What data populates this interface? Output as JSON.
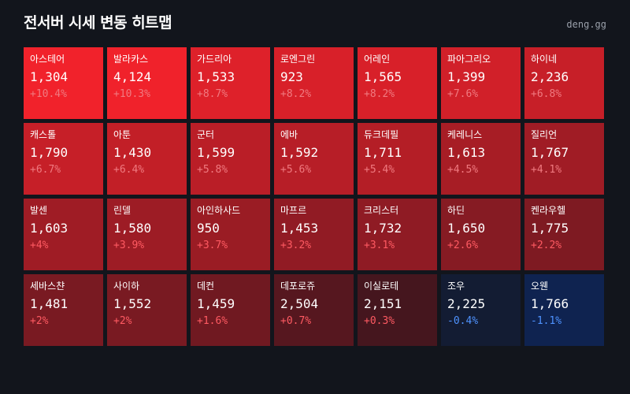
{
  "header": {
    "title": "전서버 시세 변동 히트맵",
    "brand": "deng.gg"
  },
  "colors": {
    "up_strong": "#f1222b",
    "down_strong": "#0f2350",
    "change_light_up": "#f07a80",
    "change_up": "#ff5a62",
    "change_down": "#4f93ff"
  },
  "servers": [
    {
      "name": "아스테어",
      "price": "1,304",
      "change": "+10.4%",
      "pct": 10.4
    },
    {
      "name": "발라카스",
      "price": "4,124",
      "change": "+10.3%",
      "pct": 10.3
    },
    {
      "name": "가드리아",
      "price": "1,533",
      "change": "+8.7%",
      "pct": 8.7
    },
    {
      "name": "로엔그린",
      "price": "923",
      "change": "+8.2%",
      "pct": 8.2
    },
    {
      "name": "어레인",
      "price": "1,565",
      "change": "+8.2%",
      "pct": 8.2
    },
    {
      "name": "파아그리오",
      "price": "1,399",
      "change": "+7.6%",
      "pct": 7.6
    },
    {
      "name": "하이네",
      "price": "2,236",
      "change": "+6.8%",
      "pct": 6.8
    },
    {
      "name": "캐스톨",
      "price": "1,790",
      "change": "+6.7%",
      "pct": 6.7
    },
    {
      "name": "아툰",
      "price": "1,430",
      "change": "+6.4%",
      "pct": 6.4
    },
    {
      "name": "군터",
      "price": "1,599",
      "change": "+5.8%",
      "pct": 5.8
    },
    {
      "name": "에바",
      "price": "1,592",
      "change": "+5.6%",
      "pct": 5.6
    },
    {
      "name": "듀크데필",
      "price": "1,711",
      "change": "+5.4%",
      "pct": 5.4
    },
    {
      "name": "케레니스",
      "price": "1,613",
      "change": "+4.5%",
      "pct": 4.5
    },
    {
      "name": "질리언",
      "price": "1,767",
      "change": "+4.1%",
      "pct": 4.1
    },
    {
      "name": "발센",
      "price": "1,603",
      "change": "+4%",
      "pct": 4.0
    },
    {
      "name": "린델",
      "price": "1,580",
      "change": "+3.9%",
      "pct": 3.9
    },
    {
      "name": "아인하사드",
      "price": "950",
      "change": "+3.7%",
      "pct": 3.7
    },
    {
      "name": "마프르",
      "price": "1,453",
      "change": "+3.2%",
      "pct": 3.2
    },
    {
      "name": "크리스터",
      "price": "1,732",
      "change": "+3.1%",
      "pct": 3.1
    },
    {
      "name": "하딘",
      "price": "1,650",
      "change": "+2.6%",
      "pct": 2.6
    },
    {
      "name": "켄라우헬",
      "price": "1,775",
      "change": "+2.2%",
      "pct": 2.2
    },
    {
      "name": "세바스챤",
      "price": "1,481",
      "change": "+2%",
      "pct": 2.0
    },
    {
      "name": "사이하",
      "price": "1,552",
      "change": "+2%",
      "pct": 2.0
    },
    {
      "name": "데컨",
      "price": "1,459",
      "change": "+1.6%",
      "pct": 1.6
    },
    {
      "name": "데포로쥬",
      "price": "2,504",
      "change": "+0.7%",
      "pct": 0.7
    },
    {
      "name": "이실로테",
      "price": "2,151",
      "change": "+0.3%",
      "pct": 0.3
    },
    {
      "name": "조우",
      "price": "2,225",
      "change": "-0.4%",
      "pct": -0.4
    },
    {
      "name": "오웬",
      "price": "1,766",
      "change": "-1.1%",
      "pct": -1.1
    }
  ]
}
